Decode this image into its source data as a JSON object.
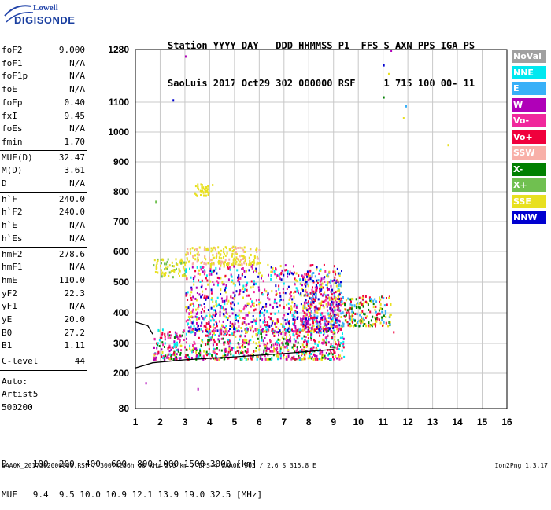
{
  "logo": {
    "top": "Lowell",
    "bottom": "DIGISONDE"
  },
  "header": {
    "row1": "Station YYYY DAY   DDD HHMMSS P1  FFS S AXN PPS IGA PS",
    "row2": "SaoLuis 2017 Oct29 302 000000 RSF     1 715 100 00- 11"
  },
  "params": [
    {
      "label": "foF2",
      "value": "9.000"
    },
    {
      "label": "foF1",
      "value": "N/A"
    },
    {
      "label": "foF1p",
      "value": "N/A"
    },
    {
      "label": "foE",
      "value": "N/A"
    },
    {
      "label": "foEp",
      "value": "0.40"
    },
    {
      "label": "fxI",
      "value": "9.45"
    },
    {
      "label": "foEs",
      "value": "N/A"
    },
    {
      "label": "fmin",
      "value": "1.70"
    },
    {
      "label": "MUF(D)",
      "value": "32.47"
    },
    {
      "label": "M(D)",
      "value": "3.61"
    },
    {
      "label": "D",
      "value": "N/A"
    },
    {
      "label": "h`F",
      "value": "240.0"
    },
    {
      "label": "h`F2",
      "value": "240.0"
    },
    {
      "label": "h`E",
      "value": "N/A"
    },
    {
      "label": "h`Es",
      "value": "N/A"
    },
    {
      "label": "hmF2",
      "value": "278.6"
    },
    {
      "label": "hmF1",
      "value": "N/A"
    },
    {
      "label": "hmE",
      "value": "110.0"
    },
    {
      "label": "yF2",
      "value": "22.3"
    },
    {
      "label": "yF1",
      "value": "N/A"
    },
    {
      "label": "yE",
      "value": "20.0"
    },
    {
      "label": "B0",
      "value": "27.2"
    },
    {
      "label": "B1",
      "value": "1.11"
    },
    {
      "label": "C-level",
      "value": "44"
    }
  ],
  "auto": [
    "Auto:",
    "Artist5",
    "500200"
  ],
  "legend": [
    {
      "label": "NoVal",
      "color": "#a0a0a0"
    },
    {
      "label": "NNE",
      "color": "#00e8f0"
    },
    {
      "label": "E",
      "color": "#38b0f8"
    },
    {
      "label": "W",
      "color": "#b000b8"
    },
    {
      "label": "Vo-",
      "color": "#f0289c"
    },
    {
      "label": "Vo+",
      "color": "#f0003c"
    },
    {
      "label": "SSW",
      "color": "#f8b0a8"
    },
    {
      "label": "X-",
      "color": "#008000"
    },
    {
      "label": "X+",
      "color": "#70c050"
    },
    {
      "label": "SSE",
      "color": "#e8e020"
    },
    {
      "label": "NNW",
      "color": "#0000d0"
    }
  ],
  "bottom": {
    "row1": "D     100  200  400  600  800 1000 1500 3000 [km]",
    "row2": "MUF   9.4  9.5 10.0 10.9 12.1 13.9 19.0 32.5 [MHz]"
  },
  "footer_left": "SAA0K_2017302000000.RSF / 300fx256h 50 kHz 5.0 km / DPS-4 SAA0K 903 / 2.6 S 315.8 E",
  "footer_right": "Ion2Png 1.3.17",
  "chart_data": {
    "type": "scatter",
    "xlim": [
      1,
      16
    ],
    "ylim": [
      80,
      1280
    ],
    "xticks": [
      1,
      2,
      3,
      4,
      5,
      6,
      7,
      8,
      9,
      10,
      11,
      12,
      13,
      14,
      15,
      16
    ],
    "yticks": [
      80,
      200,
      300,
      400,
      500,
      600,
      700,
      800,
      900,
      1000,
      1100,
      1280
    ],
    "grid": true,
    "legend_position": "right",
    "trace_lower": [
      [
        1.0,
        218
      ],
      [
        1.7,
        235
      ],
      [
        3,
        245
      ],
      [
        5,
        255
      ],
      [
        7,
        266
      ],
      [
        9,
        280
      ]
    ],
    "trace_upper": [
      [
        1.0,
        370
      ],
      [
        1.5,
        358
      ],
      [
        1.7,
        330
      ]
    ],
    "echo_regions": [
      {
        "fmin": 1.7,
        "fmax": 9.4,
        "hmin": 250,
        "hmax": 350,
        "colors": [
          "#f0003c",
          "#b000b8",
          "#f0289c",
          "#e8e020",
          "#00e8f0",
          "#008000"
        ]
      },
      {
        "fmin": 1.7,
        "fmax": 3.0,
        "hmin": 520,
        "hmax": 580,
        "colors": [
          "#e8e020",
          "#e8e020",
          "#70c050"
        ]
      },
      {
        "fmin": 3.0,
        "fmax": 6.0,
        "hmin": 560,
        "hmax": 620,
        "colors": [
          "#e8e020",
          "#e8e020",
          "#f8b0a8"
        ]
      },
      {
        "fmin": 3.0,
        "fmax": 9.3,
        "hmin": 340,
        "hmax": 560,
        "colors": [
          "#b000b8",
          "#f0003c",
          "#f0289c",
          "#00e8f0",
          "#0000d0",
          "#e8e020"
        ]
      },
      {
        "fmin": 7.7,
        "fmax": 9.3,
        "hmin": 350,
        "hmax": 540,
        "colors": [
          "#f0003c",
          "#f0289c",
          "#b000b8",
          "#0000d0",
          "#e8e020",
          "#38b0f8"
        ]
      },
      {
        "fmin": 9.3,
        "fmax": 11.3,
        "hmin": 360,
        "hmax": 460,
        "colors": [
          "#f0003c",
          "#e8e020",
          "#38b0f8",
          "#008000"
        ]
      },
      {
        "fmin": 3.3,
        "fmax": 4.1,
        "hmin": 790,
        "hmax": 830,
        "colors": [
          "#e8e020"
        ]
      }
    ],
    "points": [
      {
        "x": 3.0,
        "y": 1260,
        "c": "#b000b8"
      },
      {
        "x": 2.5,
        "y": 1110,
        "c": "#0000d0"
      },
      {
        "x": 11.0,
        "y": 1230,
        "c": "#0000d0"
      },
      {
        "x": 11.3,
        "y": 1280,
        "c": "#b000b8"
      },
      {
        "x": 11.2,
        "y": 1200,
        "c": "#e8e020"
      },
      {
        "x": 11.0,
        "y": 1120,
        "c": "#008000"
      },
      {
        "x": 11.9,
        "y": 1090,
        "c": "#38b0f8"
      },
      {
        "x": 11.8,
        "y": 1050,
        "c": "#e8e020"
      },
      {
        "x": 13.6,
        "y": 960,
        "c": "#e8e020"
      },
      {
        "x": 1.8,
        "y": 770,
        "c": "#70c050"
      },
      {
        "x": 3.5,
        "y": 150,
        "c": "#b000b8"
      },
      {
        "x": 1.4,
        "y": 170,
        "c": "#b000b8"
      },
      {
        "x": 11.1,
        "y": 370,
        "c": "#f0003c"
      },
      {
        "x": 11.4,
        "y": 340,
        "c": "#f0003c"
      }
    ]
  }
}
